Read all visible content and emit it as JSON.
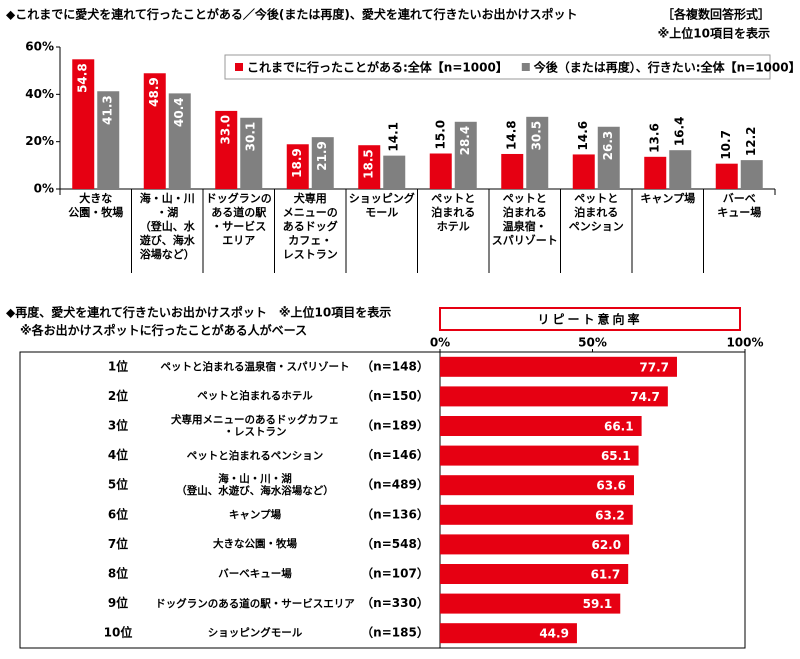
{
  "chart_data": [
    {
      "type": "bar",
      "title": "◆これまでに愛犬を連れて行ったことがある／今後(または再度)、愛犬を連れて行きたいお出かけスポット",
      "answer_format": "［各複数回答形式］",
      "note": "※上位10項目を表示",
      "categories": [
        "大きな\n公園・牧場",
        "海・山・川\n・湖\n（登山、水\n遊び、海水\n浴場など）",
        "ドッグランの\nある道の駅\n・サービス\nエリア",
        "犬専用\nメニューの\nあるドッグ\nカフェ・\nレストラン",
        "ショッピング\nモール",
        "ペットと\n泊まれる\nホテル",
        "ペットと\n泊まれる\n温泉宿・\nスパリゾート",
        "ペットと\n泊まれる\nペンション",
        "キャンプ場",
        "バーベ\nキュー場"
      ],
      "series": [
        {
          "name": "これまでに行ったことがある:全体【n=1000】",
          "color": "#e60012",
          "values": [
            54.8,
            48.9,
            33.0,
            18.9,
            18.5,
            15.0,
            14.8,
            14.6,
            13.6,
            10.7
          ],
          "value_labels": [
            "54.8",
            "48.9",
            "33.0",
            "18.9",
            "18.5",
            "15.0",
            "14.8",
            "14.6",
            "13.6",
            "10.7"
          ]
        },
        {
          "name": "今後（または再度）、行きたい:全体【n=1000】",
          "color": "#808080",
          "values": [
            41.3,
            40.4,
            30.1,
            21.9,
            14.1,
            28.4,
            30.5,
            26.3,
            16.4,
            12.2
          ],
          "value_labels": [
            "41.3",
            "40.4",
            "30.1",
            "21.9",
            "14.1",
            "28.4",
            "30.5",
            "26.3",
            "16.4",
            "12.2"
          ]
        }
      ],
      "ylim": [
        0,
        60
      ],
      "yticks": [
        {
          "value": 0,
          "label": "0%"
        },
        {
          "value": 20,
          "label": "20%"
        },
        {
          "value": 40,
          "label": "40%"
        },
        {
          "value": 60,
          "label": "60%"
        }
      ],
      "grid": false,
      "legend": "top-right"
    },
    {
      "type": "bar",
      "orientation": "horizontal",
      "title": "◆再度、愛犬を連れて行きたいお出かけスポット　※上位10項目を表示",
      "subtitle": "※各お出かけスポットに行ったことがある人がベース",
      "axis_title": "リピート意向率",
      "ranks": [
        "1位",
        "2位",
        "3位",
        "4位",
        "5位",
        "6位",
        "7位",
        "8位",
        "9位",
        "10位"
      ],
      "categories": [
        "ペットと泊まれる温泉宿・スパリゾート",
        "ペットと泊まれるホテル",
        "犬専用メニューのあるドッグカフェ\n・レストラン",
        "ペットと泊まれるペンション",
        "海・山・川・湖\n（登山、水遊び、海水浴場など）",
        "キャンプ場",
        "大きな公園・牧場",
        "バーベキュー場",
        "ドッグランのある道の駅・サービスエリア",
        "ショッピングモール"
      ],
      "n": [
        "（n=148）",
        "（n=150）",
        "（n=189）",
        "（n=146）",
        "（n=489）",
        "（n=136）",
        "（n=548）",
        "（n=107）",
        "（n=330）",
        "（n=185）"
      ],
      "values": [
        77.7,
        74.7,
        66.1,
        65.1,
        63.6,
        63.2,
        62.0,
        61.7,
        59.1,
        44.9
      ],
      "value_labels": [
        "77.7",
        "74.7",
        "66.1",
        "65.1",
        "63.6",
        "63.2",
        "62.0",
        "61.7",
        "59.1",
        "44.9"
      ],
      "color": "#e60012",
      "xlim": [
        0,
        100
      ],
      "xticks": [
        {
          "value": 0,
          "label": "0%"
        },
        {
          "value": 50,
          "label": "50%"
        },
        {
          "value": 100,
          "label": "100%"
        }
      ],
      "grid": false
    }
  ]
}
